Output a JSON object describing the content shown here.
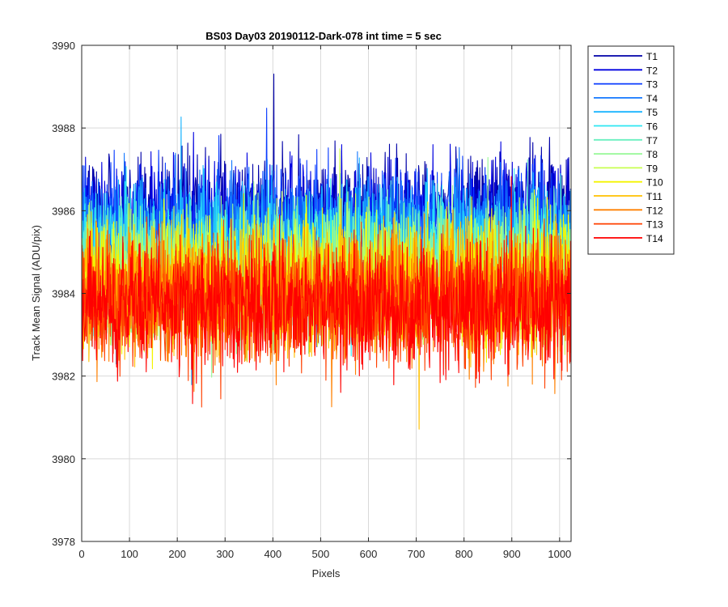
{
  "chart_data": {
    "type": "line",
    "title": "BS03 Day03 20190112-Dark-078 int time = 5 sec",
    "xlabel": "Pixels",
    "ylabel": "Track Mean Signal (ADU/pix)",
    "xlim": [
      0,
      1024
    ],
    "ylim": [
      3978,
      3990
    ],
    "xticks": [
      0,
      100,
      200,
      300,
      400,
      500,
      600,
      700,
      800,
      900,
      1000
    ],
    "yticks": [
      3978,
      3980,
      3982,
      3984,
      3986,
      3988,
      3990
    ],
    "grid": true,
    "legend_position": "outside-top-right",
    "points_per_series": 1024,
    "series": [
      {
        "name": "T1",
        "color": "#0000a8",
        "mean": 3985.9,
        "spread": 1.1
      },
      {
        "name": "T2",
        "color": "#0000e0",
        "mean": 3985.7,
        "spread": 1.1
      },
      {
        "name": "T3",
        "color": "#0a3cff",
        "mean": 3985.5,
        "spread": 1.1
      },
      {
        "name": "T4",
        "color": "#1478ff",
        "mean": 3985.3,
        "spread": 1.1
      },
      {
        "name": "T5",
        "color": "#19b4ff",
        "mean": 3985.1,
        "spread": 1.1
      },
      {
        "name": "T6",
        "color": "#2ee6f2",
        "mean": 3984.9,
        "spread": 1.1
      },
      {
        "name": "T7",
        "color": "#6af0c0",
        "mean": 3984.7,
        "spread": 1.1
      },
      {
        "name": "T8",
        "color": "#96f896",
        "mean": 3984.5,
        "spread": 1.1
      },
      {
        "name": "T9",
        "color": "#c8ff50",
        "mean": 3984.4,
        "spread": 1.1
      },
      {
        "name": "T10",
        "color": "#f4f400",
        "mean": 3984.3,
        "spread": 1.1
      },
      {
        "name": "T11",
        "color": "#ffc000",
        "mean": 3984.1,
        "spread": 1.1
      },
      {
        "name": "T12",
        "color": "#ff8000",
        "mean": 3983.9,
        "spread": 1.1
      },
      {
        "name": "T13",
        "color": "#ff4000",
        "mean": 3983.8,
        "spread": 1.1
      },
      {
        "name": "T14",
        "color": "#ff0000",
        "mean": 3983.7,
        "spread": 1.1
      }
    ]
  }
}
